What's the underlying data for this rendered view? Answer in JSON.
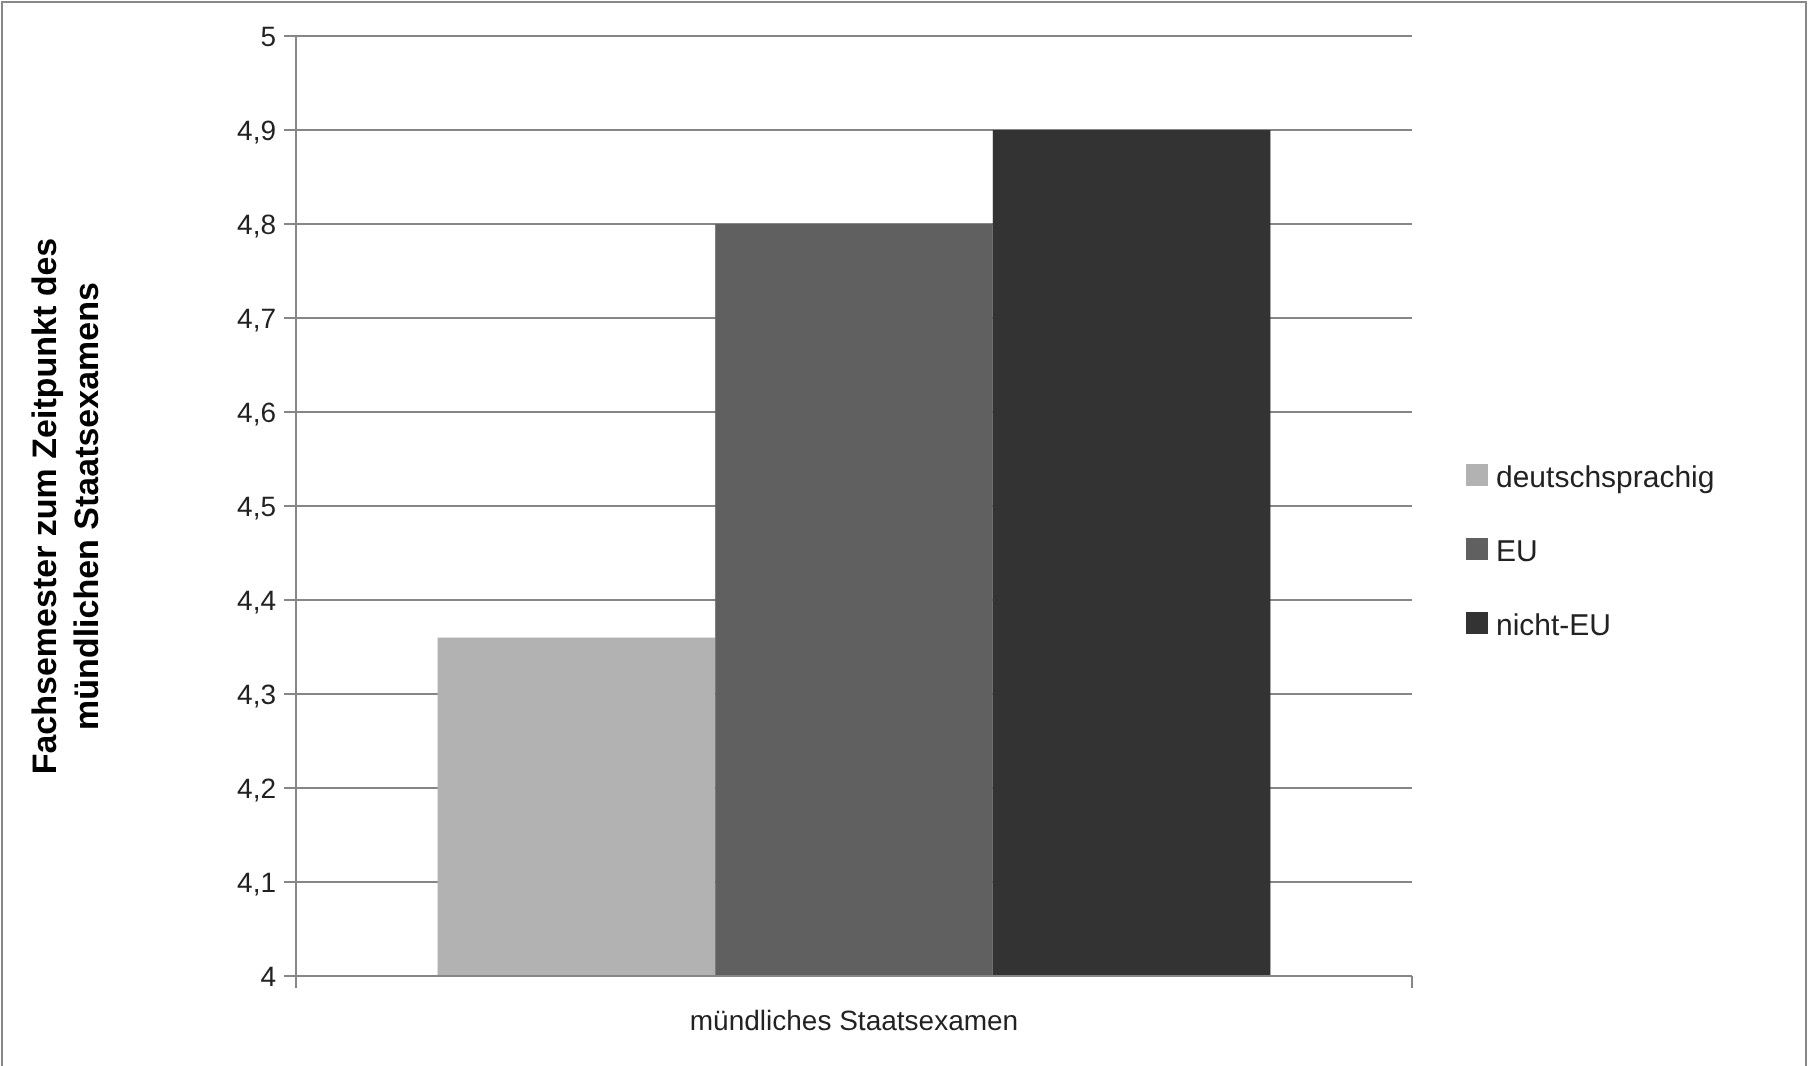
{
  "chart_data": {
    "type": "bar",
    "ylabel": "Fachsemester zum Zeitpunkt des\nmündlichen Staatsexamens",
    "categories": [
      "mündliches Staatsexamen"
    ],
    "series": [
      {
        "name": "deutschsprachig",
        "color": "#b2b2b2",
        "values": [
          4.36
        ]
      },
      {
        "name": "EU",
        "color": "#606060",
        "values": [
          4.8
        ]
      },
      {
        "name": "nicht-EU",
        "color": "#333333",
        "values": [
          4.9
        ]
      }
    ],
    "ylim": [
      4,
      5
    ],
    "yticks": [
      4,
      {
        "value": 4.1,
        "label": "4,1"
      },
      {
        "value": 4.2,
        "label": "4,2"
      },
      {
        "value": 4.3,
        "label": "4,3"
      },
      {
        "value": 4.4,
        "label": "4,4"
      },
      {
        "value": 4.5,
        "label": "4,5"
      },
      {
        "value": 4.6,
        "label": "4,6"
      },
      {
        "value": 4.7,
        "label": "4,7"
      },
      {
        "value": 4.8,
        "label": "4,8"
      },
      {
        "value": 4.9,
        "label": "4,9"
      },
      5
    ],
    "grid": "y",
    "legend": "right"
  }
}
